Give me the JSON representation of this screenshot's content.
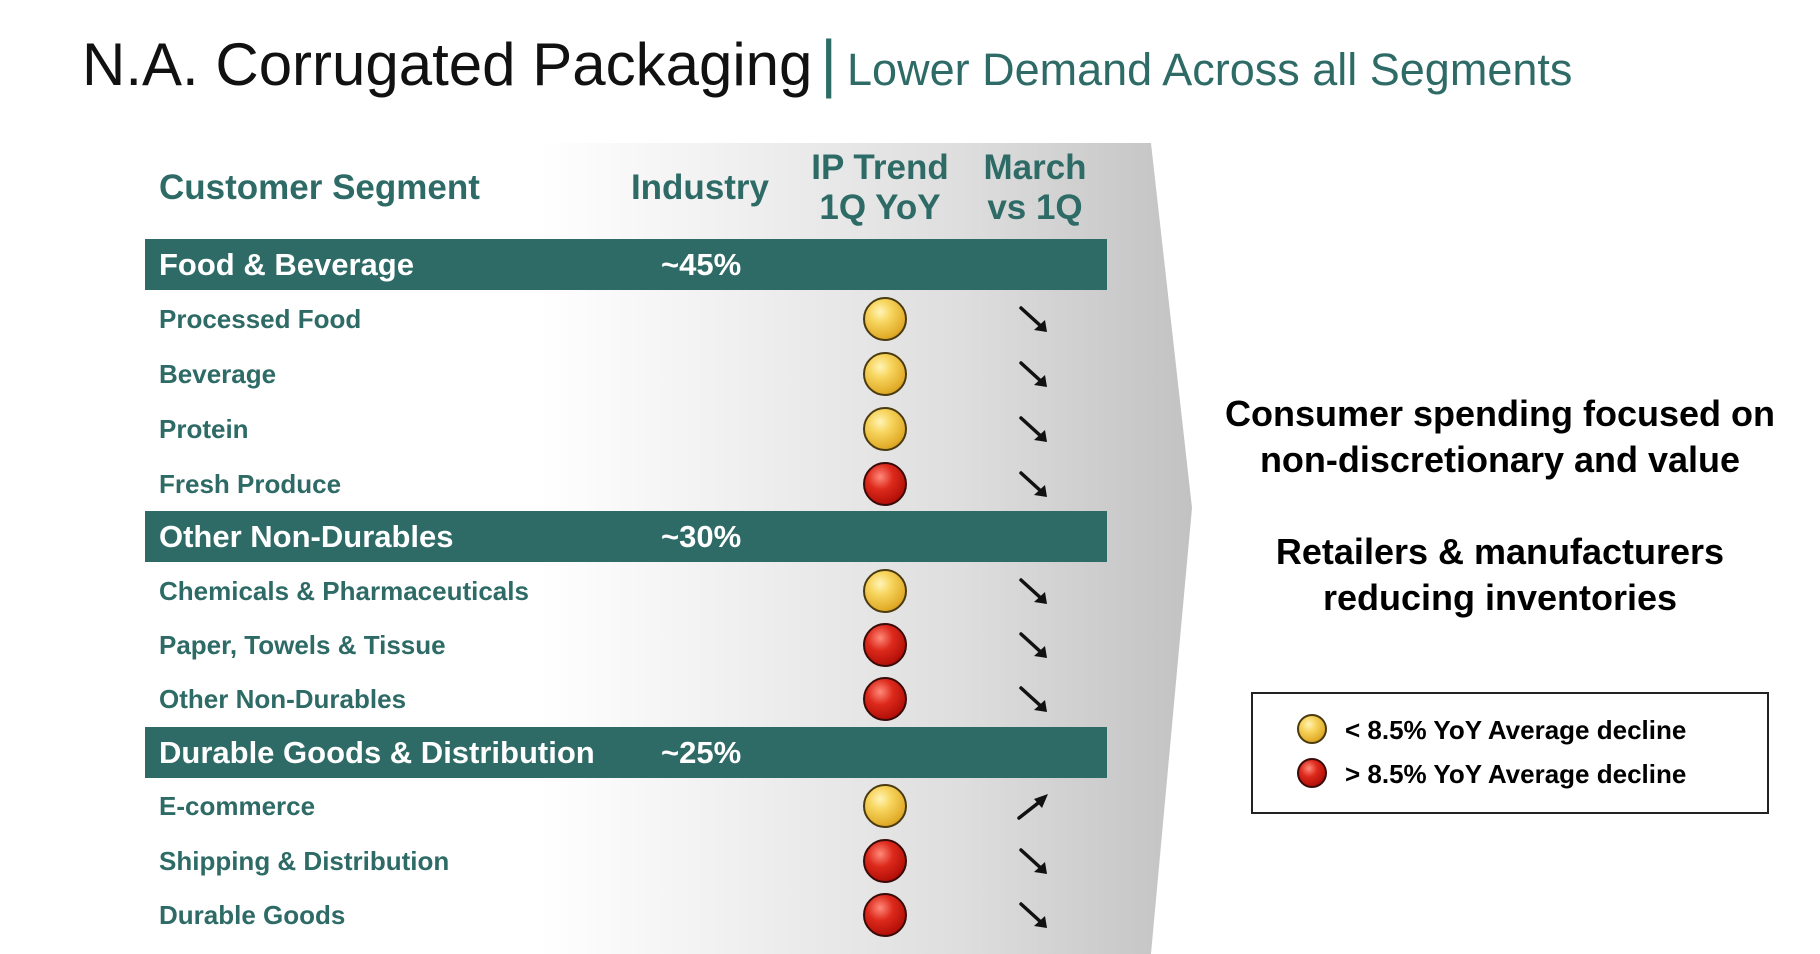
{
  "header": {
    "title": "N.A. Corrugated Packaging",
    "separator": "|",
    "subtitle": "Lower Demand Across all Segments"
  },
  "columns": {
    "segment": "Customer Segment",
    "industry": "Industry",
    "trend_line1": "IP Trend",
    "trend_line2": "1Q YoY",
    "march_line1": "March",
    "march_line2": "vs 1Q"
  },
  "groups": [
    {
      "label": "Food & Beverage",
      "industry": "~45%",
      "rows": [
        {
          "label": "Processed Food",
          "trend": "yellow",
          "direction": "down"
        },
        {
          "label": "Beverage",
          "trend": "yellow",
          "direction": "down"
        },
        {
          "label": "Protein",
          "trend": "yellow",
          "direction": "down"
        },
        {
          "label": "Fresh Produce",
          "trend": "red",
          "direction": "down"
        }
      ]
    },
    {
      "label": "Other Non-Durables",
      "industry": "~30%",
      "rows": [
        {
          "label": "Chemicals & Pharmaceuticals",
          "trend": "yellow",
          "direction": "down"
        },
        {
          "label": "Paper, Towels & Tissue",
          "trend": "red",
          "direction": "down"
        },
        {
          "label": "Other Non-Durables",
          "trend": "red",
          "direction": "down"
        }
      ]
    },
    {
      "label": "Durable Goods & Distribution",
      "industry": "~25%",
      "rows": [
        {
          "label": "E-commerce",
          "trend": "yellow",
          "direction": "up"
        },
        {
          "label": "Shipping & Distribution",
          "trend": "red",
          "direction": "down"
        },
        {
          "label": "Durable Goods",
          "trend": "red",
          "direction": "down"
        }
      ]
    }
  ],
  "notes": {
    "note1_line1": "Consumer spending focused on",
    "note1_line2": "non-discretionary and value",
    "note2_line1": "Retailers & manufacturers",
    "note2_line2": "reducing inventories"
  },
  "legend": {
    "yellow": "<  8.5% YoY Average decline",
    "red": ">  8.5% YoY Average decline"
  },
  "colors": {
    "accent": "#2e6b66",
    "yellow_indicator": "#f2c94c",
    "red_indicator": "#c8160e"
  },
  "icons": {
    "trend_indicator": "circle-indicator-icon",
    "direction_down": "arrow-down-right-icon",
    "direction_up": "arrow-up-right-icon"
  }
}
